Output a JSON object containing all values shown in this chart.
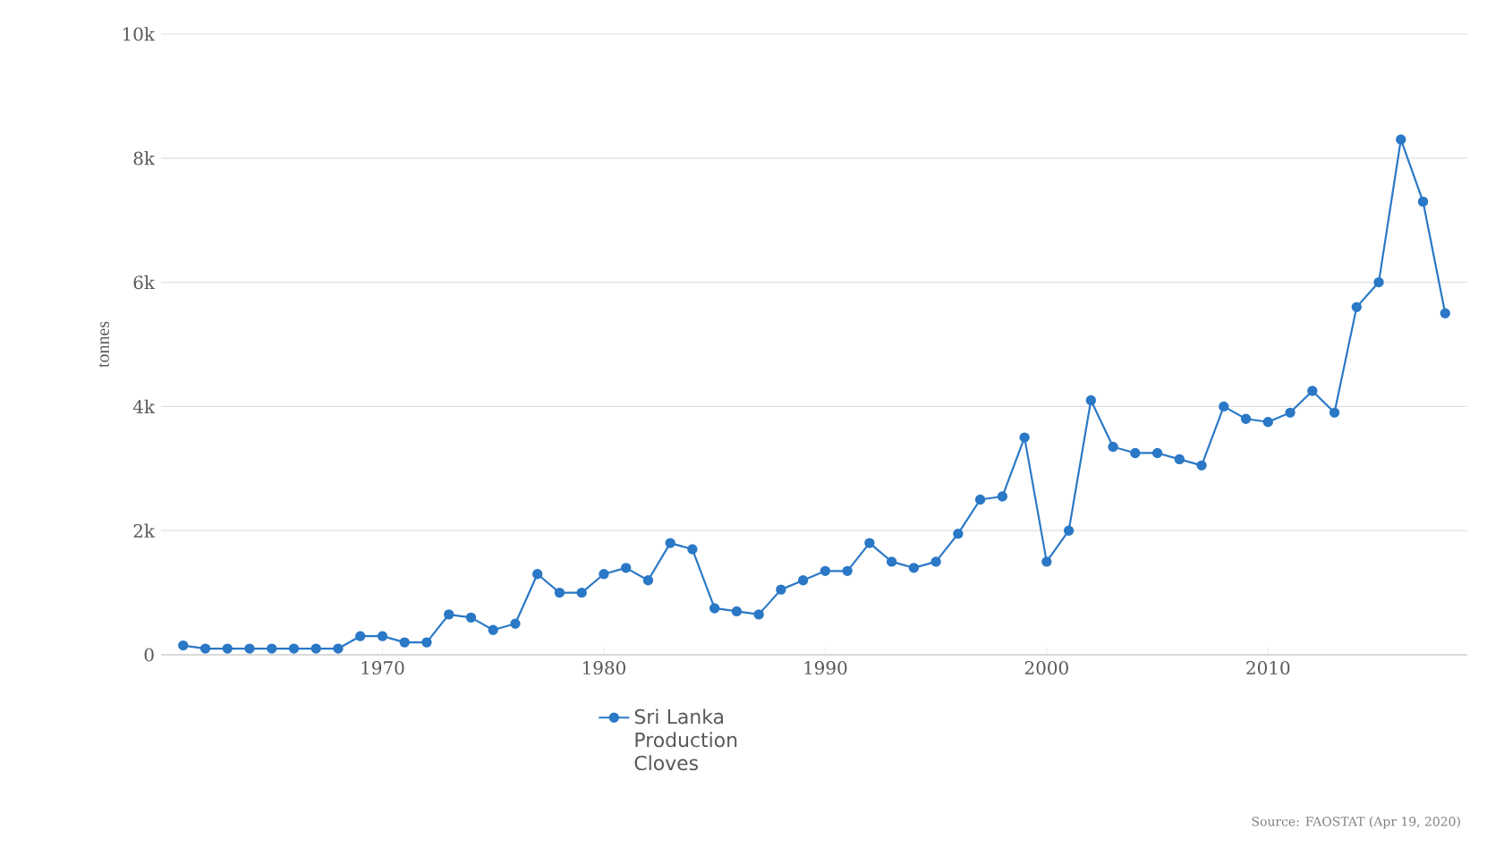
{
  "chart_data": {
    "type": "line",
    "ylabel": "tonnes",
    "x": [
      1961,
      1962,
      1963,
      1964,
      1965,
      1966,
      1967,
      1968,
      1969,
      1970,
      1971,
      1972,
      1973,
      1974,
      1975,
      1976,
      1977,
      1978,
      1979,
      1980,
      1981,
      1982,
      1983,
      1984,
      1985,
      1986,
      1987,
      1988,
      1989,
      1990,
      1991,
      1992,
      1993,
      1994,
      1995,
      1996,
      1997,
      1998,
      1999,
      2000,
      2001,
      2002,
      2003,
      2004,
      2005,
      2006,
      2007,
      2008,
      2009,
      2010,
      2011,
      2012,
      2013,
      2014,
      2015,
      2016,
      2017,
      2018
    ],
    "series": [
      {
        "name": "Sri Lanka Production Cloves",
        "color": "#2a78c6",
        "values": [
          150,
          100,
          100,
          100,
          100,
          100,
          100,
          100,
          300,
          300,
          200,
          200,
          650,
          600,
          400,
          500,
          1300,
          1000,
          1000,
          1300,
          1400,
          1200,
          1800,
          1700,
          750,
          700,
          650,
          1050,
          1200,
          1350,
          1350,
          1800,
          1500,
          1400,
          1500,
          1950,
          2500,
          2550,
          3500,
          1500,
          2000,
          4100,
          3350,
          3250,
          3250,
          3150,
          3050,
          4000,
          3800,
          3750,
          3900,
          4250,
          3900,
          5600,
          6000,
          8300,
          7300,
          5500
        ]
      }
    ],
    "xlim": [
      1960,
      2019
    ],
    "xticks": [
      1970,
      1980,
      1990,
      2000,
      2010
    ],
    "ylim": [
      0,
      10000
    ],
    "yticks": [
      0,
      {
        "value": 2000,
        "label": "2k"
      },
      {
        "value": 4000,
        "label": "4k"
      },
      {
        "value": 6000,
        "label": "6k"
      },
      {
        "value": 8000,
        "label": "8k"
      },
      {
        "value": 10000,
        "label": "10k"
      }
    ],
    "grid": "y",
    "legend": "bottom",
    "marker": "circle",
    "line_style": "solid",
    "annotations": [
      "Source: FAOSTAT (Apr 19, 2020)"
    ]
  }
}
